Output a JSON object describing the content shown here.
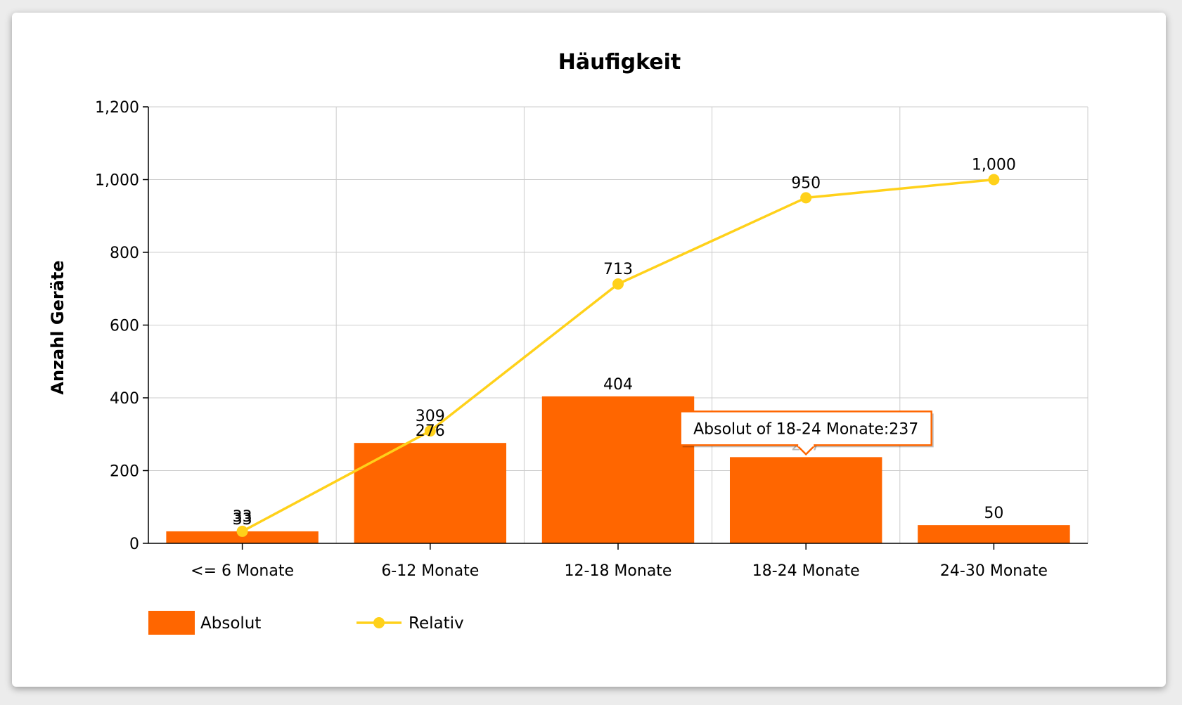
{
  "chart_data": {
    "type": "bar",
    "title": "Häufigkeit",
    "ylabel": "Anzahl Geräte",
    "xlabel": "",
    "ylim": [
      0,
      1200
    ],
    "yticks": [
      0,
      200,
      400,
      600,
      800,
      1000,
      1200
    ],
    "ytick_labels": [
      "0",
      "200",
      "400",
      "600",
      "800",
      "1,000",
      "1,200"
    ],
    "categories": [
      "<= 6 Monate",
      "6-12 Monate",
      "12-18 Monate",
      "18-24 Monate",
      "24-30 Monate"
    ],
    "grid": true,
    "legend_position": "bottom-left",
    "series": [
      {
        "name": "Absolut",
        "type": "bar",
        "color": "#ff6600",
        "values": [
          33,
          276,
          404,
          237,
          50
        ],
        "value_labels": [
          "33",
          "276",
          "404",
          "237",
          "50"
        ]
      },
      {
        "name": "Relativ",
        "type": "line",
        "color": "#ffd11a",
        "values": [
          33,
          309,
          713,
          950,
          1000
        ],
        "value_labels": [
          "33",
          "309",
          "713",
          "950",
          "1,000"
        ]
      }
    ],
    "tooltip": {
      "text": "Absolut of 18-24 Monate:237",
      "category_index": 3,
      "series": "Absolut"
    }
  }
}
